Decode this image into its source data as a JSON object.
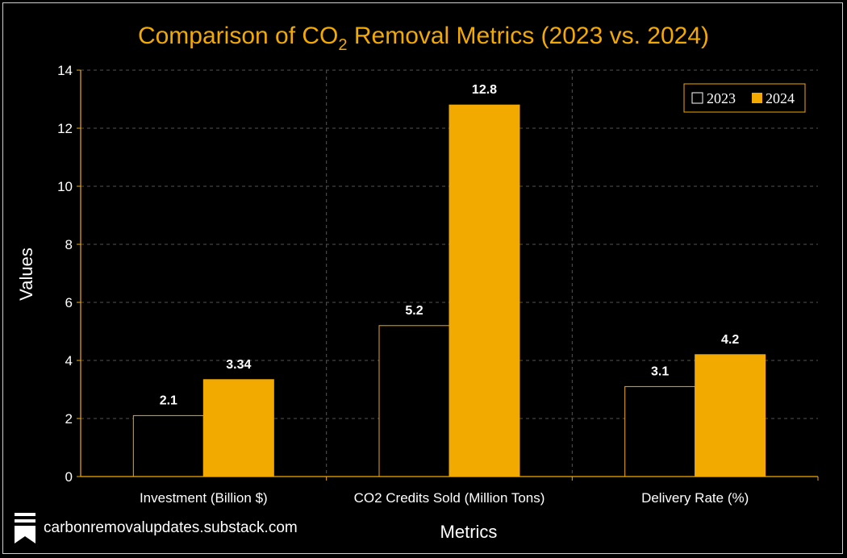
{
  "chart_data": {
    "type": "bar",
    "title_main": "Comparison of CO",
    "title_sub": "2",
    "title_rest": " Removal Metrics (2023 vs. 2024)",
    "xlabel": "Metrics",
    "ylabel": "Values",
    "ylim": [
      0,
      14
    ],
    "yticks": [
      "0",
      "2",
      "4",
      "6",
      "8",
      "10",
      "12",
      "14"
    ],
    "grid": true,
    "legend_position": "top-right",
    "categories": [
      "Investment (Billion $)",
      "CO2 Credits Sold (Million Tons)",
      "Delivery Rate (%)"
    ],
    "series": [
      {
        "name": "2023",
        "values": [
          2.1,
          5.2,
          3.1
        ],
        "labels": [
          "2.1",
          "5.2",
          "3.1"
        ],
        "color": "#000000",
        "edge": "#F2A900"
      },
      {
        "name": "2024",
        "values": [
          3.34,
          12.8,
          4.2
        ],
        "labels": [
          "3.34",
          "12.8",
          "4.2"
        ],
        "color": "#F2A900",
        "edge": "#F2A900"
      }
    ]
  },
  "footer": {
    "text": "carbonremovalupdates.substack.com",
    "icon": "bookmark-stack-icon"
  },
  "colors": {
    "background": "#000000",
    "accent": "#F2A900",
    "grid": "#555555",
    "axis": "#F2A900"
  }
}
